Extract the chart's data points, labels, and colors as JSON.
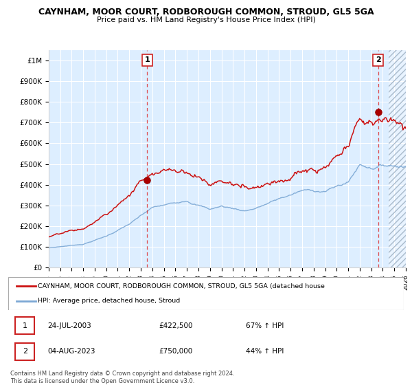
{
  "title1": "CAYNHAM, MOOR COURT, RODBOROUGH COMMON, STROUD, GL5 5GA",
  "title2": "Price paid vs. HM Land Registry's House Price Index (HPI)",
  "ylim": [
    0,
    1050000
  ],
  "yticks": [
    0,
    100000,
    200000,
    300000,
    400000,
    500000,
    600000,
    700000,
    800000,
    900000,
    1000000
  ],
  "ytick_labels": [
    "£0",
    "£100K",
    "£200K",
    "£300K",
    "£400K",
    "£500K",
    "£600K",
    "£700K",
    "£800K",
    "£900K",
    "£1M"
  ],
  "sale1_date": 2003.56,
  "sale1_price": 422500,
  "sale2_date": 2023.59,
  "sale2_price": 750000,
  "hpi_color": "#7ba7d4",
  "price_color": "#cc1111",
  "marker_color": "#aa0000",
  "legend_line1": "CAYNHAM, MOOR COURT, RODBOROUGH COMMON, STROUD, GL5 5GA (detached house",
  "legend_line2": "HPI: Average price, detached house, Stroud",
  "note1_label": "1",
  "note1_date": "24-JUL-2003",
  "note1_price": "£422,500",
  "note1_change": "67% ↑ HPI",
  "note2_label": "2",
  "note2_date": "04-AUG-2023",
  "note2_price": "£750,000",
  "note2_change": "44% ↑ HPI",
  "footer": "Contains HM Land Registry data © Crown copyright and database right 2024.\nThis data is licensed under the Open Government Licence v3.0.",
  "xmin": 1995,
  "xmax": 2026,
  "chart_bg": "#ddeeff",
  "hatch_start": 2024.5
}
